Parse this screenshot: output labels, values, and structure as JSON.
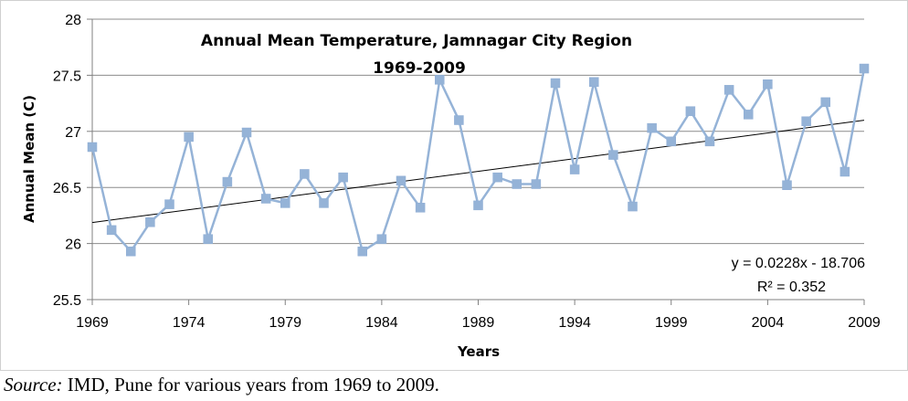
{
  "chart_data": {
    "type": "line",
    "title": "Annual Mean Temperature, Jamnagar City Region",
    "subtitle": "1969-2009",
    "xlabel": "Years",
    "ylabel": "Annual Mean  (C)",
    "xlim": [
      1969,
      2009
    ],
    "ylim": [
      25.5,
      28
    ],
    "xticks": [
      "1969",
      "1974",
      "1979",
      "1984",
      "1989",
      "1994",
      "1999",
      "2004",
      "2009"
    ],
    "yticks": [
      "25.5",
      "26",
      "26.5",
      "27",
      "27.5",
      "28"
    ],
    "grid": "horizontal",
    "legend": "none",
    "series": [
      {
        "color": "#95b3d7",
        "x": [
          1969,
          1970,
          1971,
          1972,
          1973,
          1974,
          1975,
          1976,
          1977,
          1978,
          1979,
          1980,
          1981,
          1982,
          1983,
          1984,
          1985,
          1986,
          1987,
          1988,
          1989,
          1990,
          1991,
          1992,
          1993,
          1994,
          1995,
          1996,
          1997,
          1998,
          1999,
          2000,
          2001,
          2002,
          2003,
          2004,
          2005,
          2006,
          2007,
          2008,
          2009
        ],
        "y": [
          26.86,
          26.12,
          25.93,
          26.19,
          26.35,
          26.95,
          26.04,
          26.55,
          26.99,
          26.4,
          26.36,
          26.62,
          26.36,
          26.59,
          25.93,
          26.04,
          26.56,
          26.32,
          27.46,
          27.1,
          26.34,
          26.59,
          26.53,
          26.53,
          27.43,
          26.66,
          27.44,
          26.79,
          26.33,
          27.03,
          26.91,
          27.18,
          26.91,
          27.37,
          27.15,
          27.42,
          26.52,
          27.09,
          27.26,
          26.64,
          27.56
        ]
      }
    ],
    "trendline": {
      "type": "linear",
      "slope": 0.0228,
      "intercept": -18.706,
      "color": "#000000",
      "equation_label": "y = 0.0228x - 18.706",
      "r2_label": "R² = 0.352"
    }
  },
  "source": {
    "prefix": "Source:",
    "text": " IMD, Pune for various years from 1969 to 2009."
  }
}
